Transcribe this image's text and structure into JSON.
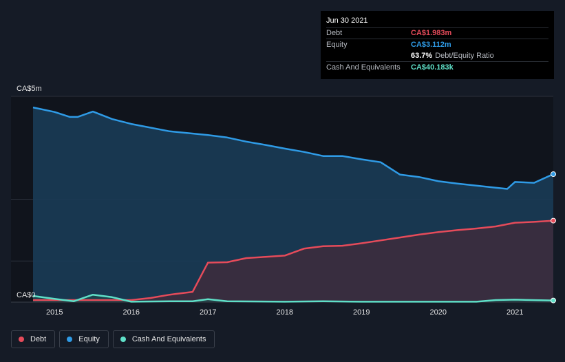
{
  "tooltip": {
    "date": "Jun 30 2021",
    "rows": [
      {
        "label": "Debt",
        "value": "CA$1.983m",
        "color": "#e64b5a"
      },
      {
        "label": "Equity",
        "value": "CA$3.112m",
        "color": "#2f9be6"
      },
      {
        "label": "",
        "value": "63.7%",
        "extra": "Debt/Equity Ratio",
        "color": "#ffffff"
      },
      {
        "label": "Cash And Equivalents",
        "value": "CA$40.183k",
        "color": "#5fe0c8"
      }
    ]
  },
  "legend": [
    {
      "label": "Debt",
      "color": "#e64b5a"
    },
    {
      "label": "Equity",
      "color": "#2f9be6"
    },
    {
      "label": "Cash And Equivalents",
      "color": "#5fe0c8"
    }
  ],
  "chart_data": {
    "type": "area",
    "title": "",
    "xlabel": "",
    "ylabel": "",
    "ylim": [
      0,
      5
    ],
    "xlim": [
      2014.72,
      2021.5
    ],
    "y_tick_labels": [
      "CA$0",
      "CA$5m"
    ],
    "x_tick_labels": [
      "2015",
      "2016",
      "2017",
      "2018",
      "2019",
      "2020",
      "2021"
    ],
    "x_ticks": [
      2015,
      2016,
      2017,
      2018,
      2019,
      2020,
      2021
    ],
    "series": [
      {
        "name": "Equity",
        "color": "#2f9be6",
        "x": [
          2014.72,
          2015.0,
          2015.2,
          2015.3,
          2015.5,
          2015.75,
          2016.0,
          2016.5,
          2017.0,
          2017.25,
          2017.5,
          2017.75,
          2018.0,
          2018.25,
          2018.5,
          2018.75,
          2019.0,
          2019.25,
          2019.5,
          2019.75,
          2020.0,
          2020.25,
          2020.5,
          2020.75,
          2020.9,
          2021.0,
          2021.25,
          2021.5
        ],
        "values": [
          4.73,
          4.62,
          4.5,
          4.5,
          4.63,
          4.45,
          4.33,
          4.15,
          4.06,
          4.0,
          3.9,
          3.82,
          3.73,
          3.65,
          3.55,
          3.55,
          3.47,
          3.4,
          3.1,
          3.04,
          2.94,
          2.88,
          2.83,
          2.78,
          2.75,
          2.92,
          2.9,
          3.11
        ]
      },
      {
        "name": "Debt",
        "color": "#e64b5a",
        "x": [
          2014.72,
          2015.0,
          2015.5,
          2016.0,
          2016.25,
          2016.5,
          2016.8,
          2017.0,
          2017.25,
          2017.5,
          2017.75,
          2018.0,
          2018.25,
          2018.5,
          2018.75,
          2019.0,
          2019.25,
          2019.5,
          2019.75,
          2020.0,
          2020.25,
          2020.5,
          2020.75,
          2021.0,
          2021.25,
          2021.5
        ],
        "values": [
          0.05,
          0.05,
          0.05,
          0.05,
          0.1,
          0.18,
          0.25,
          0.96,
          0.97,
          1.07,
          1.1,
          1.13,
          1.3,
          1.36,
          1.37,
          1.43,
          1.5,
          1.57,
          1.64,
          1.7,
          1.75,
          1.79,
          1.84,
          1.93,
          1.95,
          1.98
        ]
      },
      {
        "name": "Cash And Equivalents",
        "color": "#5fe0c8",
        "x": [
          2014.72,
          2015.0,
          2015.25,
          2015.5,
          2015.75,
          2016.0,
          2016.5,
          2016.8,
          2017.0,
          2017.25,
          2018.0,
          2018.5,
          2019.0,
          2020.0,
          2020.5,
          2020.75,
          2021.0,
          2021.5
        ],
        "values": [
          0.15,
          0.08,
          0.02,
          0.18,
          0.12,
          0.01,
          0.02,
          0.02,
          0.07,
          0.02,
          0.01,
          0.02,
          0.01,
          0.01,
          0.01,
          0.05,
          0.06,
          0.04
        ]
      }
    ]
  }
}
